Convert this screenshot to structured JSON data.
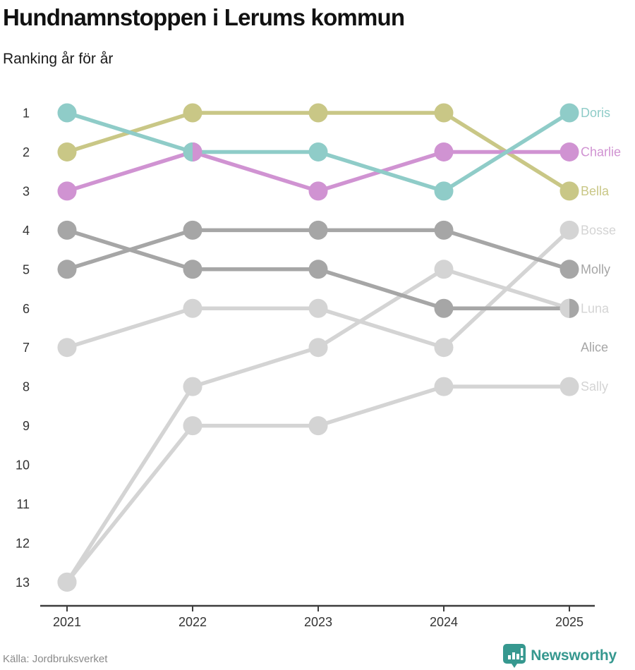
{
  "title": "Hundnamnstoppen i Lerums kommun",
  "subtitle": "Ranking år för år",
  "source": "Källa: Jordbruksverket",
  "logo": {
    "text": "Newsworthy",
    "color": "#36988f"
  },
  "chart_data": {
    "type": "line",
    "subtype": "bump-ranking",
    "title": "Hundnamnstoppen i Lerums kommun",
    "xlabel": "",
    "ylabel": "",
    "x": [
      "2021",
      "2022",
      "2023",
      "2024",
      "2025"
    ],
    "yticks": [
      1,
      2,
      3,
      4,
      5,
      6,
      7,
      8,
      9,
      10,
      11,
      12,
      13
    ],
    "ylim": [
      1,
      13
    ],
    "y_inverted": true,
    "grid": false,
    "legend_position": "right-inline",
    "axis_color": "#3d3d3d",
    "tick_label_color": "#333333",
    "series": [
      {
        "name": "Doris",
        "color": "#8fccc8",
        "values": [
          1,
          2,
          2,
          3,
          1
        ],
        "label_rank": 1,
        "draw_order": 8
      },
      {
        "name": "Charlie",
        "color": "#d093d2",
        "values": [
          3,
          2,
          3,
          2,
          2
        ],
        "label_rank": 2,
        "draw_order": 7
      },
      {
        "name": "Bella",
        "color": "#c9c786",
        "values": [
          2,
          1,
          1,
          1,
          3
        ],
        "label_rank": 3,
        "draw_order": 6
      },
      {
        "name": "Bosse",
        "color": "#d4d4d4",
        "values": [
          7,
          6,
          6,
          7,
          4
        ],
        "label_rank": 4,
        "draw_order": 1
      },
      {
        "name": "Molly",
        "color": "#a6a6a6",
        "values": [
          5,
          4,
          4,
          4,
          5
        ],
        "label_rank": 5,
        "draw_order": 4
      },
      {
        "name": "Luna",
        "color": "#d4d4d4",
        "values": [
          13,
          8,
          7,
          5,
          6
        ],
        "label_rank": 6,
        "draw_order": 2
      },
      {
        "name": "Alice",
        "color": "#a6a6a6",
        "values": [
          4,
          5,
          5,
          6,
          6
        ],
        "label_rank": 7,
        "draw_order": 5
      },
      {
        "name": "Sally",
        "color": "#d4d4d4",
        "values": [
          13,
          9,
          9,
          8,
          8
        ],
        "label_rank": 8,
        "draw_order": 3
      }
    ],
    "ties": [
      {
        "year": "2022",
        "rank": 2,
        "left_color": "#8fccc8",
        "right_color": "#d093d2",
        "members": [
          "Doris",
          "Charlie"
        ]
      },
      {
        "year": "2025",
        "rank": 6,
        "left_color": "#d4d4d4",
        "right_color": "#a6a6a6",
        "members": [
          "Luna",
          "Alice"
        ]
      }
    ]
  }
}
